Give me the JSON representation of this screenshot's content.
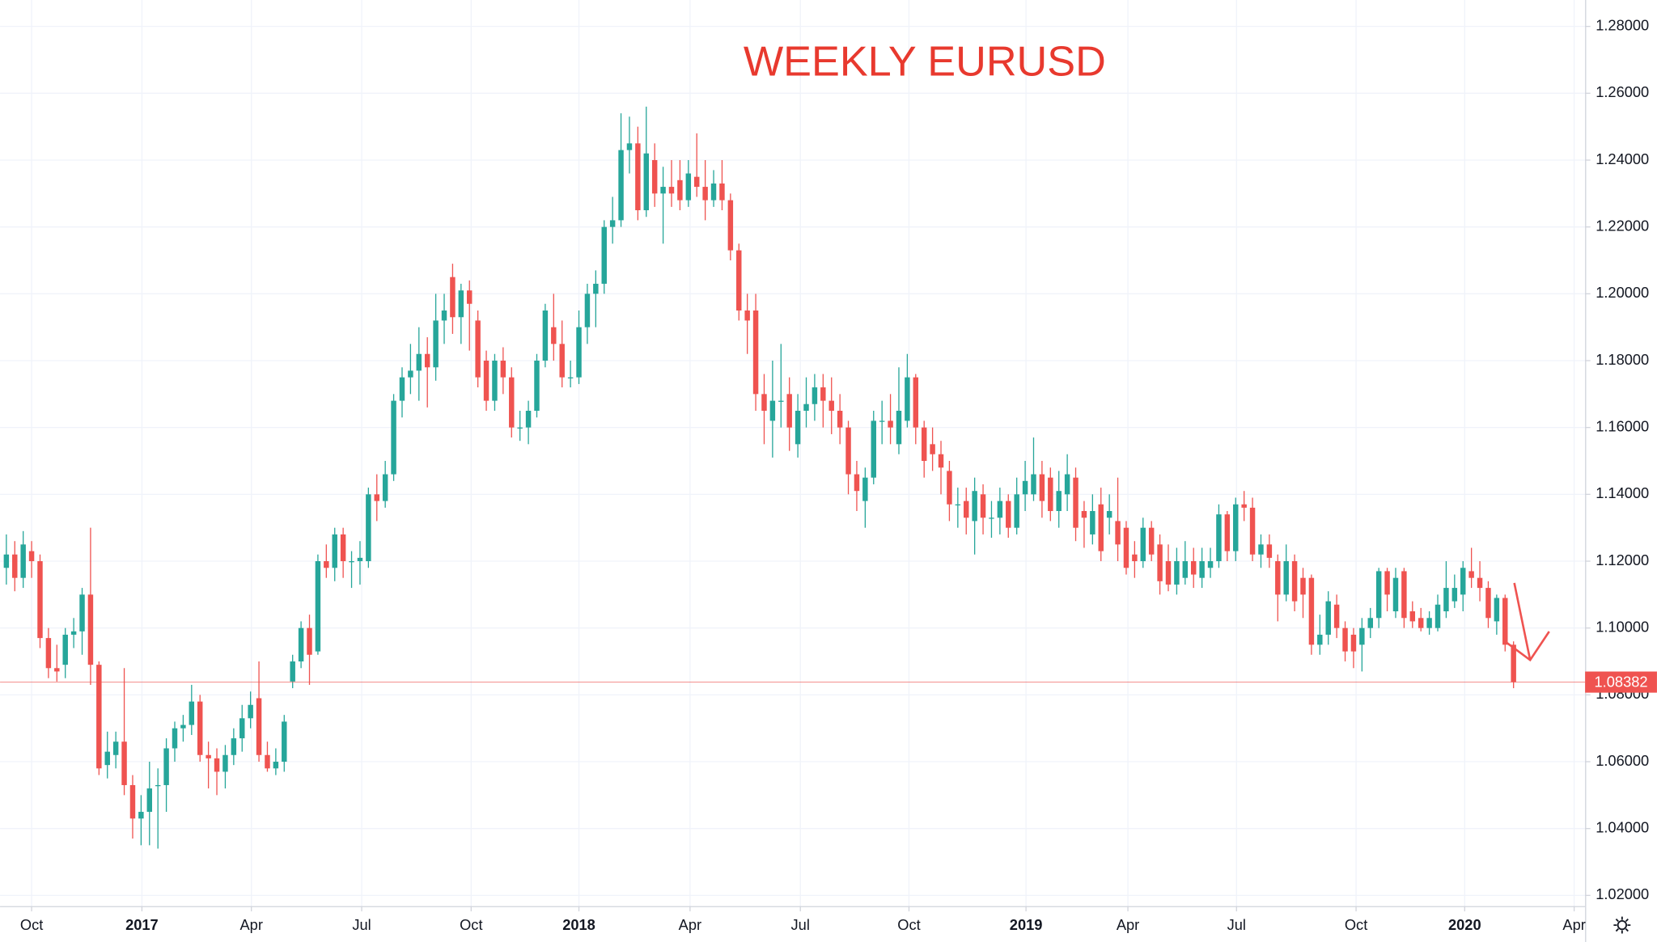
{
  "chart_data": {
    "type": "candlestick",
    "title": "WEEKLY EURUSD",
    "up_color": "#26a69a",
    "down_color": "#ef5350",
    "grid": true,
    "xlim": [
      -0.75,
      187.5
    ],
    "ylim": [
      1.0168,
      1.2879
    ],
    "yticks": [
      {
        "value": 1.02,
        "label": "1.02000"
      },
      {
        "value": 1.04,
        "label": "1.04000"
      },
      {
        "value": 1.06,
        "label": "1.06000"
      },
      {
        "value": 1.08,
        "label": "1.08000"
      },
      {
        "value": 1.1,
        "label": "1.10000"
      },
      {
        "value": 1.12,
        "label": "1.12000"
      },
      {
        "value": 1.14,
        "label": "1.14000"
      },
      {
        "value": 1.16,
        "label": "1.16000"
      },
      {
        "value": 1.18,
        "label": "1.18000"
      },
      {
        "value": 1.2,
        "label": "1.20000"
      },
      {
        "value": 1.22,
        "label": "1.22000"
      },
      {
        "value": 1.24,
        "label": "1.24000"
      },
      {
        "value": 1.26,
        "label": "1.26000"
      },
      {
        "value": 1.28,
        "label": "1.28000"
      }
    ],
    "xticks": [
      {
        "value": 3.0,
        "label": "Oct"
      },
      {
        "value": 16.1,
        "label": "2017"
      },
      {
        "value": 29.1,
        "label": "Apr"
      },
      {
        "value": 42.2,
        "label": "Jul"
      },
      {
        "value": 55.2,
        "label": "Oct"
      },
      {
        "value": 68.0,
        "label": "2018"
      },
      {
        "value": 81.2,
        "label": "Apr"
      },
      {
        "value": 94.3,
        "label": "Jul"
      },
      {
        "value": 107.2,
        "label": "Oct"
      },
      {
        "value": 121.1,
        "label": "2019"
      },
      {
        "value": 133.2,
        "label": "Apr"
      },
      {
        "value": 146.1,
        "label": "Jul"
      },
      {
        "value": 160.3,
        "label": "Oct"
      },
      {
        "value": 173.2,
        "label": "2020"
      },
      {
        "value": 186.2,
        "label": "Apr"
      }
    ],
    "open": [
      1.118,
      1.122,
      1.115,
      1.123,
      1.12,
      1.097,
      1.088,
      1.089,
      1.098,
      1.099,
      1.11,
      1.089,
      1.059,
      1.062,
      1.066,
      1.053,
      1.043,
      1.045,
      1.053,
      1.053,
      1.064,
      1.07,
      1.071,
      1.078,
      1.062,
      1.061,
      1.057,
      1.062,
      1.067,
      1.073,
      1.079,
      1.062,
      1.058,
      1.06,
      1.084,
      1.09,
      1.1,
      1.093,
      1.12,
      1.118,
      1.128,
      1.12,
      1.12,
      1.12,
      1.14,
      1.138,
      1.146,
      1.168,
      1.175,
      1.177,
      1.182,
      1.178,
      1.192,
      1.205,
      1.193,
      1.201,
      1.192,
      1.18,
      1.168,
      1.18,
      1.175,
      1.16,
      1.16,
      1.165,
      1.18,
      1.19,
      1.185,
      1.175,
      1.175,
      1.19,
      1.2,
      1.203,
      1.22,
      1.222,
      1.243,
      1.245,
      1.225,
      1.24,
      1.23,
      1.232,
      1.234,
      1.228,
      1.235,
      1.232,
      1.228,
      1.233,
      1.228,
      1.213,
      1.195,
      1.195,
      1.17,
      1.162,
      1.168,
      1.17,
      1.155,
      1.165,
      1.167,
      1.172,
      1.168,
      1.165,
      1.16,
      1.146,
      1.138,
      1.145,
      1.162,
      1.162,
      1.155,
      1.162,
      1.175,
      1.16,
      1.155,
      1.152,
      1.147,
      1.137,
      1.138,
      1.132,
      1.14,
      1.133,
      1.133,
      1.138,
      1.13,
      1.14,
      1.14,
      1.146,
      1.145,
      1.135,
      1.14,
      1.145,
      1.135,
      1.128,
      1.137,
      1.133,
      1.132,
      1.13,
      1.122,
      1.12,
      1.13,
      1.125,
      1.12,
      1.113,
      1.115,
      1.12,
      1.115,
      1.118,
      1.12,
      1.134,
      1.123,
      1.137,
      1.136,
      1.122,
      1.125,
      1.12,
      1.11,
      1.12,
      1.115,
      1.115,
      1.095,
      1.098,
      1.107,
      1.1,
      1.098,
      1.095,
      1.1,
      1.103,
      1.117,
      1.105,
      1.117,
      1.105,
      1.103,
      1.1,
      1.1,
      1.105,
      1.108,
      1.11,
      1.117,
      1.115,
      1.112,
      1.102,
      1.109,
      1.095
    ],
    "high": [
      1.128,
      1.126,
      1.129,
      1.126,
      1.122,
      1.1,
      1.095,
      1.1,
      1.103,
      1.112,
      1.13,
      1.09,
      1.069,
      1.069,
      1.088,
      1.056,
      1.05,
      1.06,
      1.058,
      1.067,
      1.072,
      1.074,
      1.083,
      1.08,
      1.066,
      1.064,
      1.065,
      1.07,
      1.077,
      1.081,
      1.09,
      1.066,
      1.064,
      1.074,
      1.092,
      1.102,
      1.104,
      1.122,
      1.125,
      1.13,
      1.13,
      1.123,
      1.126,
      1.142,
      1.146,
      1.15,
      1.17,
      1.178,
      1.185,
      1.19,
      1.187,
      1.2,
      1.2,
      1.209,
      1.203,
      1.204,
      1.195,
      1.183,
      1.182,
      1.184,
      1.178,
      1.165,
      1.168,
      1.182,
      1.197,
      1.2,
      1.192,
      1.18,
      1.195,
      1.203,
      1.207,
      1.222,
      1.229,
      1.254,
      1.253,
      1.25,
      1.256,
      1.245,
      1.238,
      1.24,
      1.24,
      1.24,
      1.248,
      1.24,
      1.237,
      1.24,
      1.23,
      1.215,
      1.2,
      1.2,
      1.176,
      1.18,
      1.185,
      1.175,
      1.17,
      1.175,
      1.176,
      1.176,
      1.175,
      1.17,
      1.162,
      1.15,
      1.148,
      1.165,
      1.168,
      1.17,
      1.178,
      1.182,
      1.176,
      1.162,
      1.16,
      1.156,
      1.15,
      1.142,
      1.142,
      1.145,
      1.143,
      1.138,
      1.142,
      1.14,
      1.145,
      1.15,
      1.157,
      1.15,
      1.148,
      1.147,
      1.152,
      1.148,
      1.138,
      1.14,
      1.142,
      1.14,
      1.145,
      1.132,
      1.126,
      1.133,
      1.132,
      1.128,
      1.125,
      1.124,
      1.126,
      1.124,
      1.124,
      1.124,
      1.137,
      1.135,
      1.139,
      1.141,
      1.139,
      1.128,
      1.128,
      1.122,
      1.125,
      1.122,
      1.118,
      1.116,
      1.104,
      1.111,
      1.11,
      1.102,
      1.1,
      1.103,
      1.106,
      1.118,
      1.118,
      1.118,
      1.118,
      1.108,
      1.106,
      1.105,
      1.11,
      1.12,
      1.116,
      1.12,
      1.124,
      1.12,
      1.114,
      1.11,
      1.11,
      1.096
    ],
    "low": [
      1.113,
      1.111,
      1.112,
      1.115,
      1.094,
      1.085,
      1.084,
      1.085,
      1.094,
      1.092,
      1.083,
      1.056,
      1.055,
      1.058,
      1.05,
      1.037,
      1.035,
      1.035,
      1.034,
      1.045,
      1.06,
      1.066,
      1.068,
      1.06,
      1.052,
      1.05,
      1.052,
      1.059,
      1.063,
      1.07,
      1.06,
      1.057,
      1.056,
      1.057,
      1.082,
      1.088,
      1.083,
      1.092,
      1.115,
      1.114,
      1.115,
      1.112,
      1.113,
      1.118,
      1.132,
      1.136,
      1.144,
      1.163,
      1.17,
      1.168,
      1.166,
      1.174,
      1.185,
      1.188,
      1.185,
      1.183,
      1.172,
      1.165,
      1.165,
      1.17,
      1.157,
      1.156,
      1.155,
      1.163,
      1.178,
      1.18,
      1.172,
      1.172,
      1.173,
      1.185,
      1.19,
      1.2,
      1.215,
      1.22,
      1.236,
      1.222,
      1.223,
      1.226,
      1.215,
      1.226,
      1.225,
      1.226,
      1.229,
      1.222,
      1.226,
      1.225,
      1.21,
      1.192,
      1.182,
      1.165,
      1.155,
      1.151,
      1.16,
      1.153,
      1.151,
      1.16,
      1.162,
      1.16,
      1.158,
      1.155,
      1.14,
      1.135,
      1.13,
      1.143,
      1.155,
      1.155,
      1.152,
      1.16,
      1.155,
      1.145,
      1.147,
      1.14,
      1.132,
      1.13,
      1.128,
      1.122,
      1.128,
      1.127,
      1.128,
      1.127,
      1.128,
      1.135,
      1.138,
      1.133,
      1.132,
      1.13,
      1.135,
      1.126,
      1.124,
      1.125,
      1.12,
      1.128,
      1.12,
      1.116,
      1.115,
      1.118,
      1.12,
      1.11,
      1.111,
      1.11,
      1.113,
      1.112,
      1.112,
      1.115,
      1.118,
      1.12,
      1.12,
      1.132,
      1.12,
      1.118,
      1.118,
      1.102,
      1.108,
      1.105,
      1.103,
      1.092,
      1.092,
      1.095,
      1.097,
      1.09,
      1.088,
      1.087,
      1.097,
      1.1,
      1.105,
      1.103,
      1.1,
      1.1,
      1.099,
      1.098,
      1.099,
      1.103,
      1.106,
      1.105,
      1.112,
      1.108,
      1.1,
      1.098,
      1.093,
      1.082
    ],
    "close": [
      1.122,
      1.115,
      1.125,
      1.12,
      1.097,
      1.088,
      1.087,
      1.098,
      1.099,
      1.11,
      1.089,
      1.058,
      1.063,
      1.066,
      1.053,
      1.043,
      1.045,
      1.052,
      1.053,
      1.064,
      1.07,
      1.071,
      1.078,
      1.062,
      1.061,
      1.057,
      1.062,
      1.067,
      1.073,
      1.077,
      1.062,
      1.058,
      1.06,
      1.072,
      1.09,
      1.1,
      1.092,
      1.12,
      1.118,
      1.128,
      1.12,
      1.12,
      1.121,
      1.14,
      1.138,
      1.146,
      1.168,
      1.175,
      1.177,
      1.182,
      1.178,
      1.192,
      1.195,
      1.193,
      1.201,
      1.197,
      1.175,
      1.168,
      1.18,
      1.175,
      1.16,
      1.16,
      1.165,
      1.18,
      1.195,
      1.185,
      1.175,
      1.175,
      1.19,
      1.2,
      1.203,
      1.22,
      1.222,
      1.243,
      1.245,
      1.225,
      1.242,
      1.23,
      1.232,
      1.23,
      1.228,
      1.236,
      1.232,
      1.228,
      1.233,
      1.228,
      1.213,
      1.195,
      1.192,
      1.17,
      1.165,
      1.168,
      1.168,
      1.16,
      1.165,
      1.167,
      1.172,
      1.168,
      1.165,
      1.16,
      1.146,
      1.141,
      1.145,
      1.162,
      1.162,
      1.16,
      1.165,
      1.175,
      1.16,
      1.15,
      1.152,
      1.148,
      1.137,
      1.137,
      1.133,
      1.141,
      1.133,
      1.133,
      1.138,
      1.13,
      1.14,
      1.144,
      1.146,
      1.138,
      1.135,
      1.141,
      1.146,
      1.13,
      1.133,
      1.135,
      1.123,
      1.135,
      1.125,
      1.118,
      1.12,
      1.13,
      1.122,
      1.114,
      1.113,
      1.12,
      1.12,
      1.116,
      1.12,
      1.12,
      1.134,
      1.123,
      1.137,
      1.136,
      1.122,
      1.125,
      1.121,
      1.11,
      1.12,
      1.108,
      1.11,
      1.095,
      1.098,
      1.108,
      1.1,
      1.093,
      1.093,
      1.1,
      1.103,
      1.117,
      1.11,
      1.115,
      1.103,
      1.102,
      1.1,
      1.103,
      1.107,
      1.112,
      1.112,
      1.118,
      1.115,
      1.112,
      1.103,
      1.109,
      1.095,
      1.08382
    ]
  }
}
